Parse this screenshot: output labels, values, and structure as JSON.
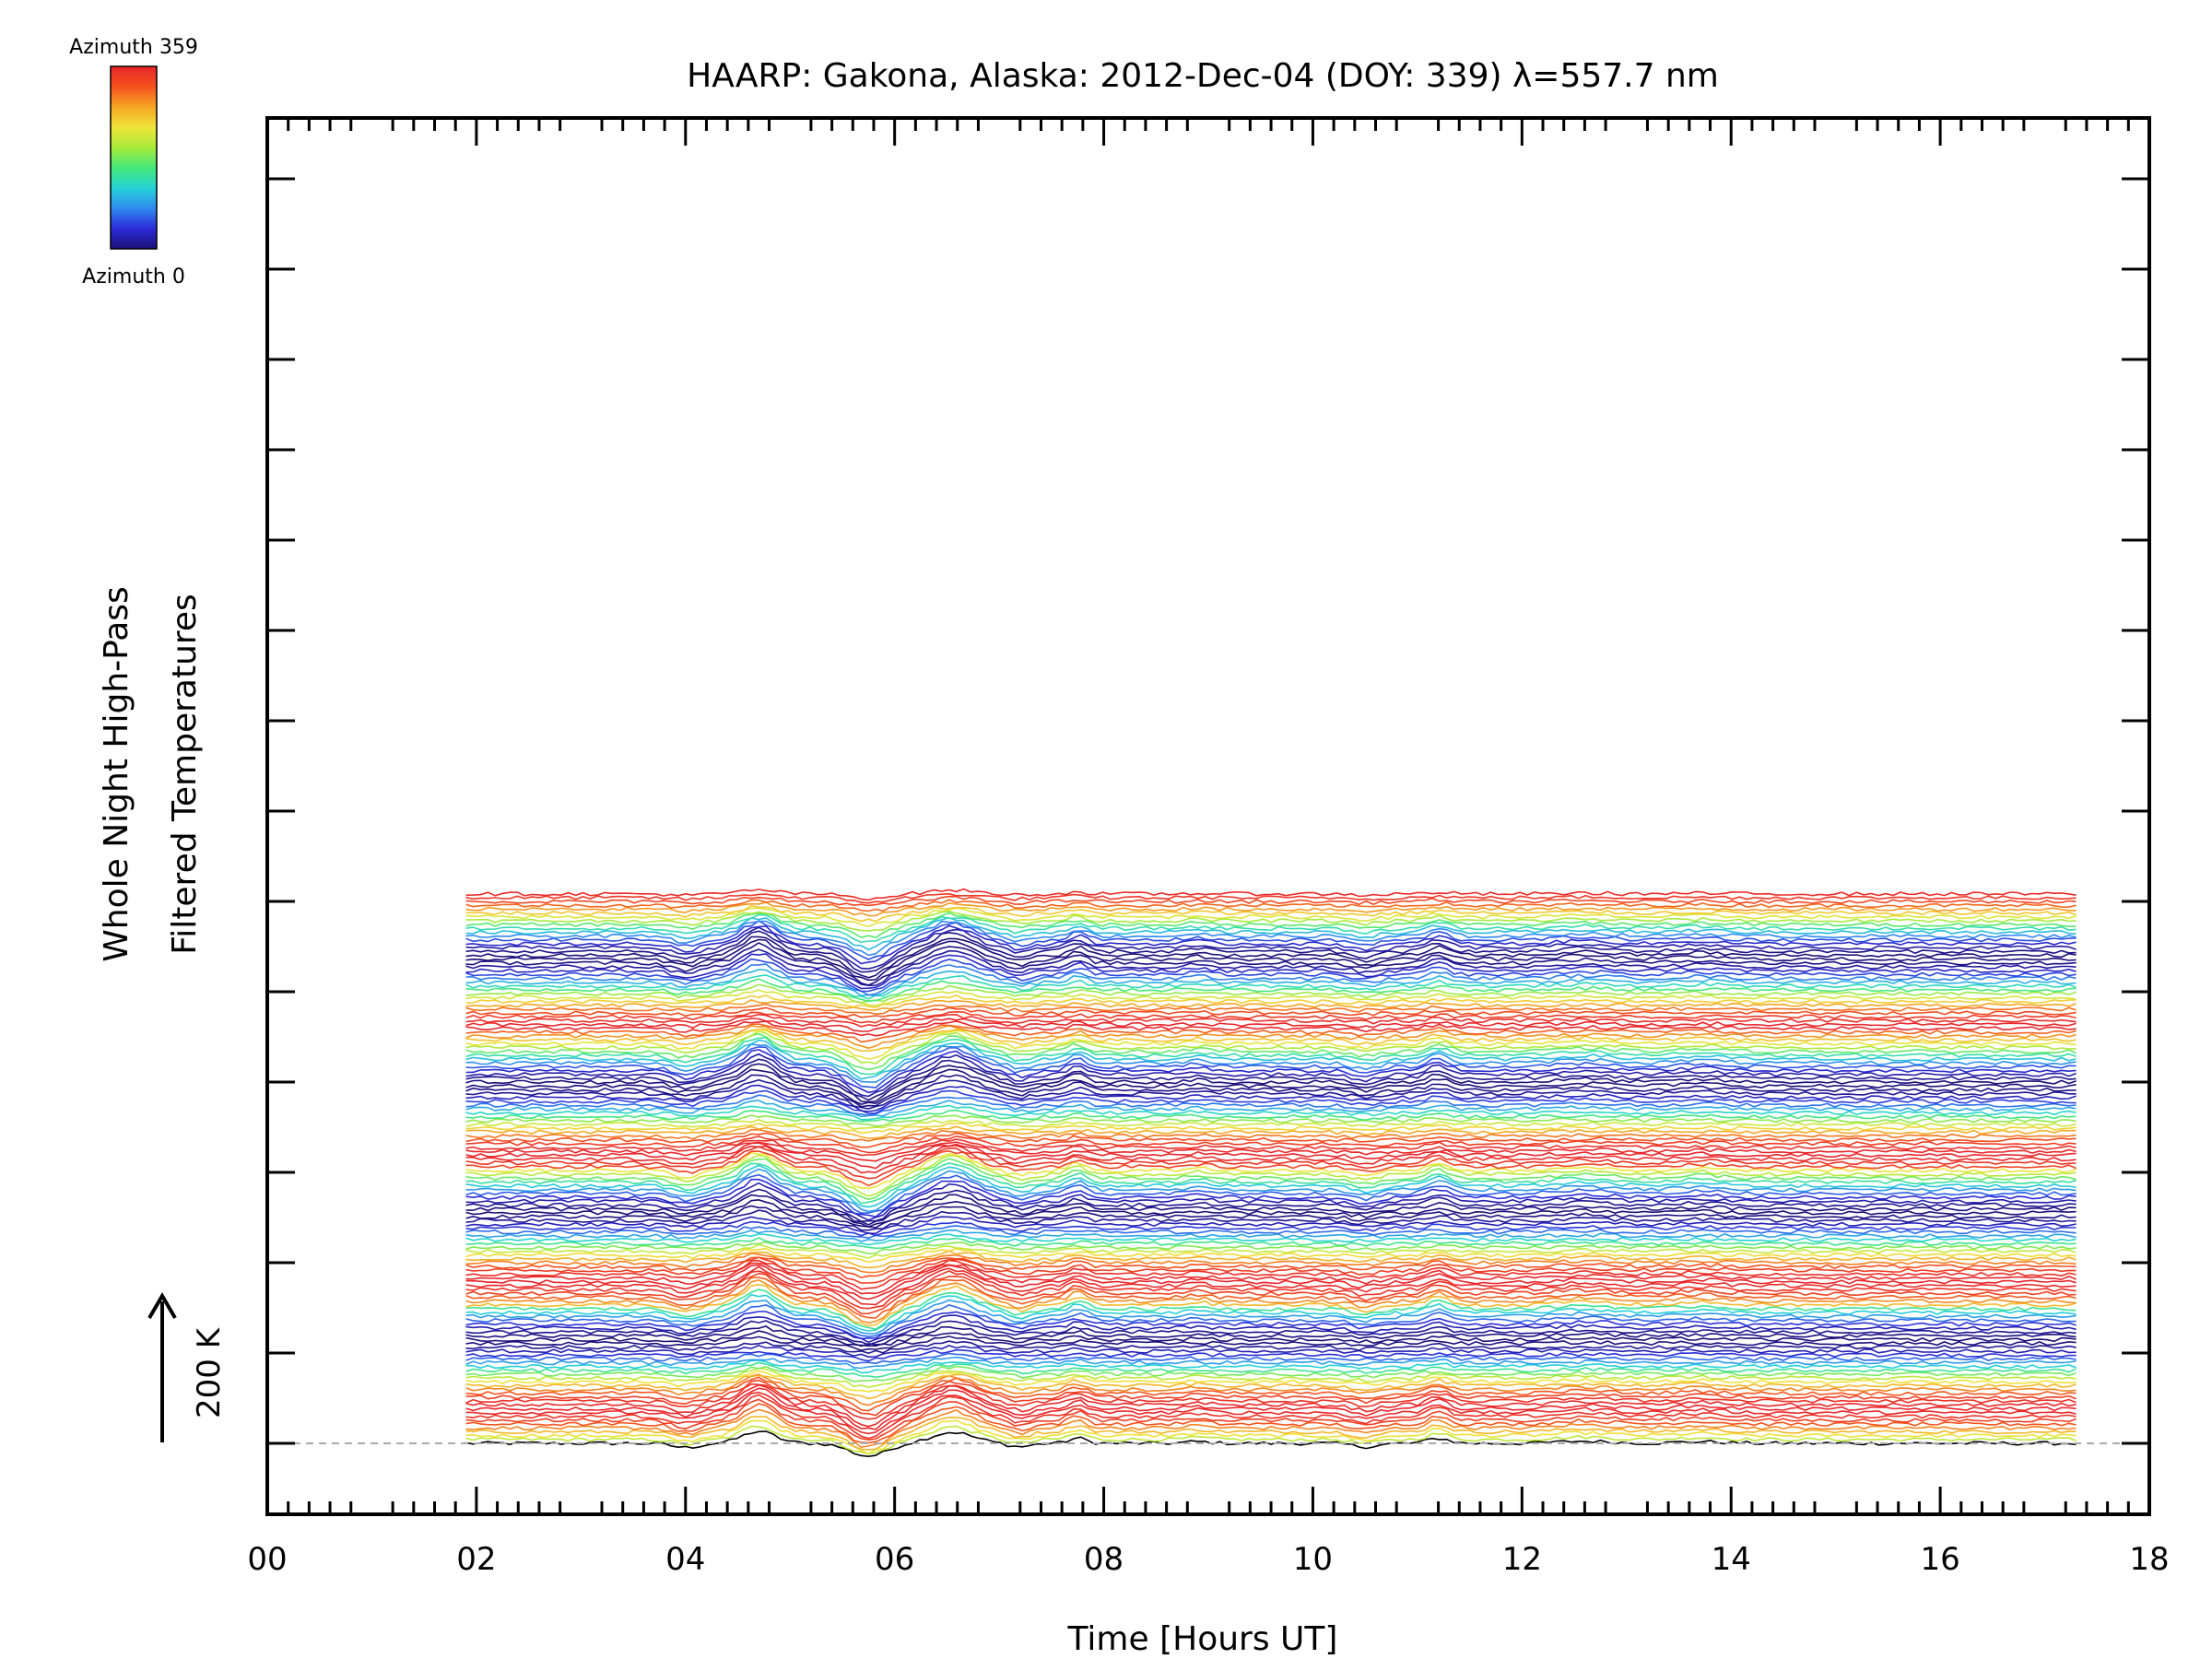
{
  "chart_data": {
    "type": "line",
    "title": "HAARP: Gakona,  Alaska: 2012-Dec-04 (DOY: 339) λ=557.7 nm",
    "xlabel": "Time [Hours UT]",
    "ylabel_line1": "Whole Night High-Pass",
    "ylabel_line2": "Filtered Temperatures",
    "xlim": [
      0,
      18
    ],
    "xticks": [
      "00",
      "02",
      "04",
      "06",
      "08",
      "10",
      "12",
      "14",
      "16",
      "18"
    ],
    "x_data_range": [
      1.9,
      17.3
    ],
    "y_offset_step_K": 20,
    "scale_bar_label": "200 K",
    "colorbar": {
      "top_label": "Azimuth 359",
      "bottom_label": "Azimuth 0",
      "colormap": [
        "#1c0f78",
        "#2b2bd8",
        "#2f8bf0",
        "#25d3d6",
        "#45e87a",
        "#a9ea3a",
        "#f0e43a",
        "#f5a623",
        "#f4511e",
        "#e8262b"
      ]
    },
    "series_count": 144,
    "azimuth_step_deg": 2.5,
    "baseline_style": "dashed"
  }
}
